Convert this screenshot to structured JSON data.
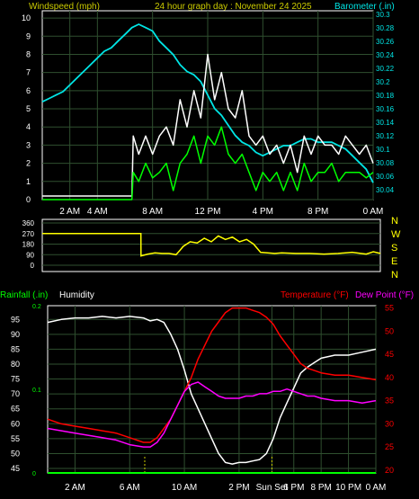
{
  "header": {
    "left_label": "Windspeed (mph)",
    "title": "24 hour graph day : November 24 2025",
    "right_label": "Barometer (.in)"
  },
  "colors": {
    "background": "#000000",
    "plot_border": "#ffffff",
    "grid": "#2f4f2f",
    "wind_gust": "#ffffff",
    "wind_avg": "#00ff00",
    "barometer": "#00e5e5",
    "direction": "#ffff00",
    "temperature": "#ff0000",
    "dewpoint": "#ff00ff",
    "humidity": "#ffffff",
    "rainfall": "#00ff00",
    "marker": "#cccc00",
    "title": "#cccc00"
  },
  "chart_data": [
    {
      "type": "line",
      "name": "wind-barometer",
      "x_ticks": [
        "2 AM",
        "4 AM",
        "8 AM",
        "12 PM",
        "4 PM",
        "8 PM",
        "0 AM"
      ],
      "x_tick_hours": [
        2,
        4,
        8,
        12,
        16,
        20,
        24
      ],
      "xlim": [
        0,
        24
      ],
      "y_left": {
        "label": "Windspeed (mph)",
        "ticks": [
          0,
          1,
          2,
          3,
          4,
          5,
          6,
          7,
          8,
          9,
          10
        ],
        "lim": [
          0,
          10.4
        ]
      },
      "y_right": {
        "label": "Barometer (.in)",
        "ticks": [
          "30.04",
          "30.06",
          "30.08",
          "30.1",
          "30.12",
          "30.14",
          "30.16",
          "30.18",
          "30.2",
          "30.22",
          "30.24",
          "30.26",
          "30.28",
          "30.3"
        ],
        "lim": [
          30.025,
          30.305
        ]
      },
      "series": [
        {
          "name": "Barometer",
          "axis": "right",
          "x": [
            0,
            0.5,
            1,
            1.5,
            2,
            2.5,
            3,
            3.5,
            4,
            4.5,
            5,
            5.5,
            6,
            6.5,
            7,
            7.5,
            8,
            8.5,
            9,
            9.5,
            10,
            10.5,
            11,
            11.5,
            12,
            12.5,
            13,
            13.5,
            14,
            14.5,
            15,
            15.5,
            16,
            16.5,
            17,
            17.5,
            18,
            18.5,
            19,
            19.5,
            20,
            20.5,
            21,
            21.5,
            22,
            22.5,
            23,
            23.5,
            24
          ],
          "y": [
            30.17,
            30.175,
            30.18,
            30.185,
            30.195,
            30.205,
            30.215,
            30.225,
            30.235,
            30.245,
            30.25,
            30.26,
            30.27,
            30.28,
            30.285,
            30.28,
            30.275,
            30.26,
            30.25,
            30.24,
            30.225,
            30.215,
            30.21,
            30.2,
            30.18,
            30.16,
            30.15,
            30.135,
            30.12,
            30.11,
            30.105,
            30.095,
            30.09,
            30.095,
            30.1,
            30.105,
            30.105,
            30.11,
            30.115,
            30.115,
            30.11,
            30.11,
            30.11,
            30.105,
            30.1,
            30.09,
            30.08,
            30.07,
            30.05
          ]
        },
        {
          "name": "Gust",
          "axis": "left",
          "x": [
            0,
            6.5,
            6.6,
            7,
            7.5,
            8,
            8.5,
            9,
            9.5,
            10,
            10.5,
            11,
            11.5,
            12,
            12.5,
            13,
            13.5,
            14,
            14.5,
            15,
            15.5,
            16,
            16.5,
            17,
            17.5,
            18,
            18.5,
            19,
            19.5,
            20,
            20.5,
            21,
            21.5,
            22,
            22.5,
            23,
            23.5,
            24
          ],
          "y": [
            0.2,
            0.2,
            3.5,
            2.5,
            3.5,
            2.5,
            3.5,
            4,
            3,
            5.5,
            4,
            6,
            4.5,
            8,
            5.5,
            7,
            5,
            4.5,
            6,
            3.5,
            3,
            3.5,
            2.5,
            3,
            2,
            3,
            1.5,
            3.5,
            2.5,
            3.5,
            3,
            3,
            2.5,
            3.5,
            3,
            2.5,
            3,
            2
          ]
        },
        {
          "name": "Average",
          "axis": "left",
          "x": [
            0,
            6.5,
            6.6,
            7,
            7.5,
            8,
            8.5,
            9,
            9.5,
            10,
            10.5,
            11,
            11.5,
            12,
            12.5,
            13,
            13.5,
            14,
            14.5,
            15,
            15.5,
            16,
            16.5,
            17,
            17.5,
            18,
            18.5,
            19,
            19.5,
            20,
            20.5,
            21,
            21.5,
            22,
            22.5,
            23,
            23.5,
            24
          ],
          "y": [
            0,
            0,
            1.5,
            1,
            2,
            1.2,
            1.5,
            2,
            0.5,
            2,
            2.5,
            3.5,
            2,
            3.5,
            3,
            4,
            2.5,
            2,
            2.5,
            1.5,
            0.5,
            1.5,
            1,
            1.5,
            0.5,
            1.5,
            0.5,
            2,
            1,
            1.5,
            1.5,
            2,
            1,
            1.5,
            1.5,
            1.5,
            1.2,
            1.5
          ]
        }
      ]
    },
    {
      "type": "line",
      "name": "wind-direction",
      "y_ticks": [
        "360",
        "270",
        "180",
        "90",
        "0"
      ],
      "y_tick_values": [
        360,
        270,
        180,
        90,
        0
      ],
      "compass": [
        "N",
        "W",
        "S",
        "E",
        "N"
      ],
      "ylim": [
        0,
        360
      ],
      "xlim": [
        0,
        24
      ],
      "series": [
        {
          "name": "Direction",
          "x": [
            0,
            7,
            7.01,
            7.5,
            8,
            8.5,
            9,
            9.5,
            9.8,
            10,
            10.5,
            11,
            11.5,
            12,
            12.5,
            13,
            13.5,
            14,
            14.5,
            15,
            15.5,
            16,
            16.5,
            17,
            18,
            19,
            20,
            21,
            22,
            23,
            23.5,
            24
          ],
          "y": [
            270,
            270,
            80,
            95,
            105,
            100,
            100,
            90,
            130,
            160,
            200,
            190,
            230,
            200,
            250,
            220,
            240,
            200,
            220,
            180,
            110,
            105,
            100,
            105,
            100,
            100,
            95,
            100,
            110,
            95,
            115,
            100
          ]
        }
      ]
    },
    {
      "type": "line",
      "name": "temperature-humidity",
      "top_labels": {
        "rainfall": "Rainfall (.in)",
        "humidity": "Humidity",
        "temperature": "Temperature (°F)",
        "dewpoint": "Dew Point (°F)"
      },
      "x_ticks": [
        "2 AM",
        "6 AM",
        "10 AM",
        "2 PM",
        "Sun Set",
        "6 PM",
        "8 PM",
        "10 PM",
        "0 AM"
      ],
      "x_tick_hours": [
        2,
        6,
        10,
        14,
        16.4,
        18,
        20,
        22,
        24
      ],
      "xlim": [
        0,
        24
      ],
      "y_left": {
        "label": "Humidity",
        "ticks": [
          45,
          50,
          55,
          60,
          65,
          70,
          75,
          80,
          85,
          90,
          95
        ],
        "lim": [
          43.5,
          99.6
        ]
      },
      "y_right": {
        "label": "Temperature (°F)",
        "ticks": [
          20,
          25,
          30,
          35,
          40,
          45,
          50,
          55
        ],
        "lim": [
          19.4,
          55.5
        ]
      },
      "y_rain": {
        "label": "Rainfall (.in)",
        "ticks": [
          "0",
          "0.1",
          "0.2"
        ],
        "lim": [
          0,
          0.2
        ]
      },
      "markers": {
        "sunrise_hour": 7.1,
        "sunset_hour": 16.4
      },
      "series": [
        {
          "name": "Humidity",
          "axis": "left",
          "x": [
            0,
            1,
            2,
            3,
            4,
            5,
            6,
            7,
            7.5,
            8,
            8.5,
            9,
            9.5,
            10,
            10.5,
            11,
            11.5,
            12,
            12.5,
            13,
            13.5,
            14,
            14.5,
            15,
            15.5,
            16,
            16.5,
            17,
            17.5,
            18,
            18.5,
            19,
            19.5,
            20,
            21,
            22,
            23,
            24
          ],
          "y": [
            94,
            95,
            95.5,
            95.5,
            96,
            95.5,
            96,
            95.5,
            94.5,
            95,
            94,
            90,
            85,
            78,
            70,
            65,
            60,
            55,
            50,
            47,
            46.5,
            47,
            47,
            47.5,
            48,
            50,
            55,
            62,
            67,
            72,
            77,
            79,
            80.5,
            82,
            83,
            83,
            84,
            85
          ]
        },
        {
          "name": "Temperature",
          "axis": "right",
          "x": [
            0,
            1,
            2,
            3,
            4,
            5,
            6,
            7,
            7.5,
            8,
            8.5,
            9,
            9.5,
            10,
            10.5,
            11,
            11.5,
            12,
            12.5,
            13,
            13.5,
            14,
            14.5,
            15,
            15.5,
            16,
            16.5,
            17,
            17.5,
            18,
            18.5,
            19,
            19.5,
            20,
            21,
            22,
            23,
            24
          ],
          "y": [
            31,
            30,
            29.5,
            29,
            28.5,
            28,
            27,
            26,
            26,
            27,
            29,
            31,
            34,
            37,
            40,
            44,
            47,
            50,
            52,
            54,
            55,
            55,
            55,
            54.5,
            54,
            53,
            51.5,
            49,
            47,
            45,
            43,
            42,
            41.5,
            41,
            40.5,
            40.5,
            40,
            39.5
          ]
        },
        {
          "name": "Dew Point",
          "axis": "right",
          "x": [
            0,
            1,
            2,
            3,
            4,
            5,
            6,
            7,
            7.5,
            8,
            8.5,
            9,
            9.5,
            10,
            10.5,
            11,
            11.5,
            12,
            12.5,
            13,
            13.5,
            14,
            14.5,
            15,
            15.5,
            16,
            16.5,
            17,
            17.5,
            18,
            18.5,
            19,
            19.5,
            20,
            21,
            22,
            23,
            24
          ],
          "y": [
            29,
            28.5,
            28,
            27.5,
            27,
            26.5,
            25.5,
            25,
            25,
            26,
            28,
            31,
            34,
            37,
            38.5,
            39,
            38,
            37,
            36,
            35.5,
            35.5,
            35.5,
            36,
            36,
            36.5,
            36.5,
            37,
            37,
            37.5,
            37,
            36.5,
            36,
            36,
            35.5,
            35,
            35,
            34.5,
            35
          ]
        },
        {
          "name": "Rainfall",
          "axis": "rain",
          "x": [
            0,
            24
          ],
          "y": [
            0,
            0
          ]
        }
      ]
    }
  ]
}
